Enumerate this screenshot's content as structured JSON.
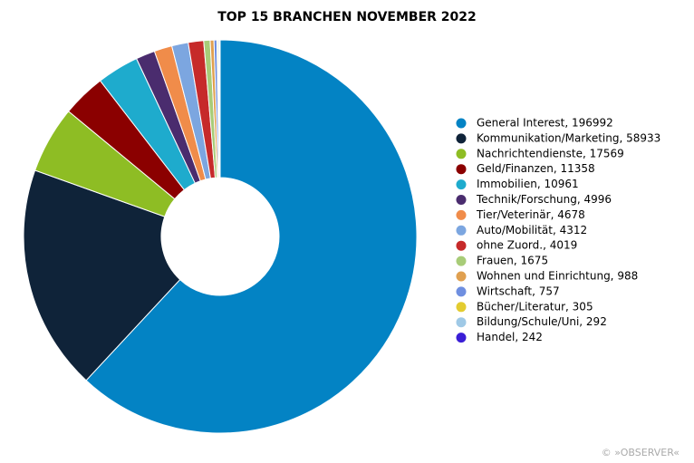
{
  "chart_data": {
    "type": "pie",
    "title": "TOP 15 BRANCHEN NOVEMBER 2022",
    "categories": [
      "General Interest, 196992",
      "Kommunikation/Marketing, 58933",
      "Nachrichtendienste, 17569",
      "Geld/Finanzen, 11358",
      "Immobilien, 10961",
      "Technik/Forschung, 4996",
      "Tier/Veterinär, 4678",
      "Auto/Mobilität, 4312",
      "ohne Zuord., 4019",
      "Frauen, 1675",
      "Wohnen und Einrichtung, 988",
      "Wirtschaft, 757",
      "Bücher/Literatur, 305",
      "Bildung/Schule/Uni, 292",
      "Handel, 242"
    ],
    "values": [
      196992,
      58933,
      17569,
      11358,
      10961,
      4996,
      4678,
      4312,
      4019,
      1675,
      988,
      757,
      305,
      292,
      242
    ],
    "colors": [
      "#0383c4",
      "#0f2339",
      "#8ebd24",
      "#8b0000",
      "#1eabcd",
      "#4a2c6e",
      "#f08c4a",
      "#7ca6e0",
      "#c62a2a",
      "#a8cc78",
      "#e0a050",
      "#6f8fe0",
      "#e3cc30",
      "#9fc9e6",
      "#3a1ed6"
    ],
    "donut": true,
    "legend": "right",
    "credit": "© »OBSERVER«"
  }
}
